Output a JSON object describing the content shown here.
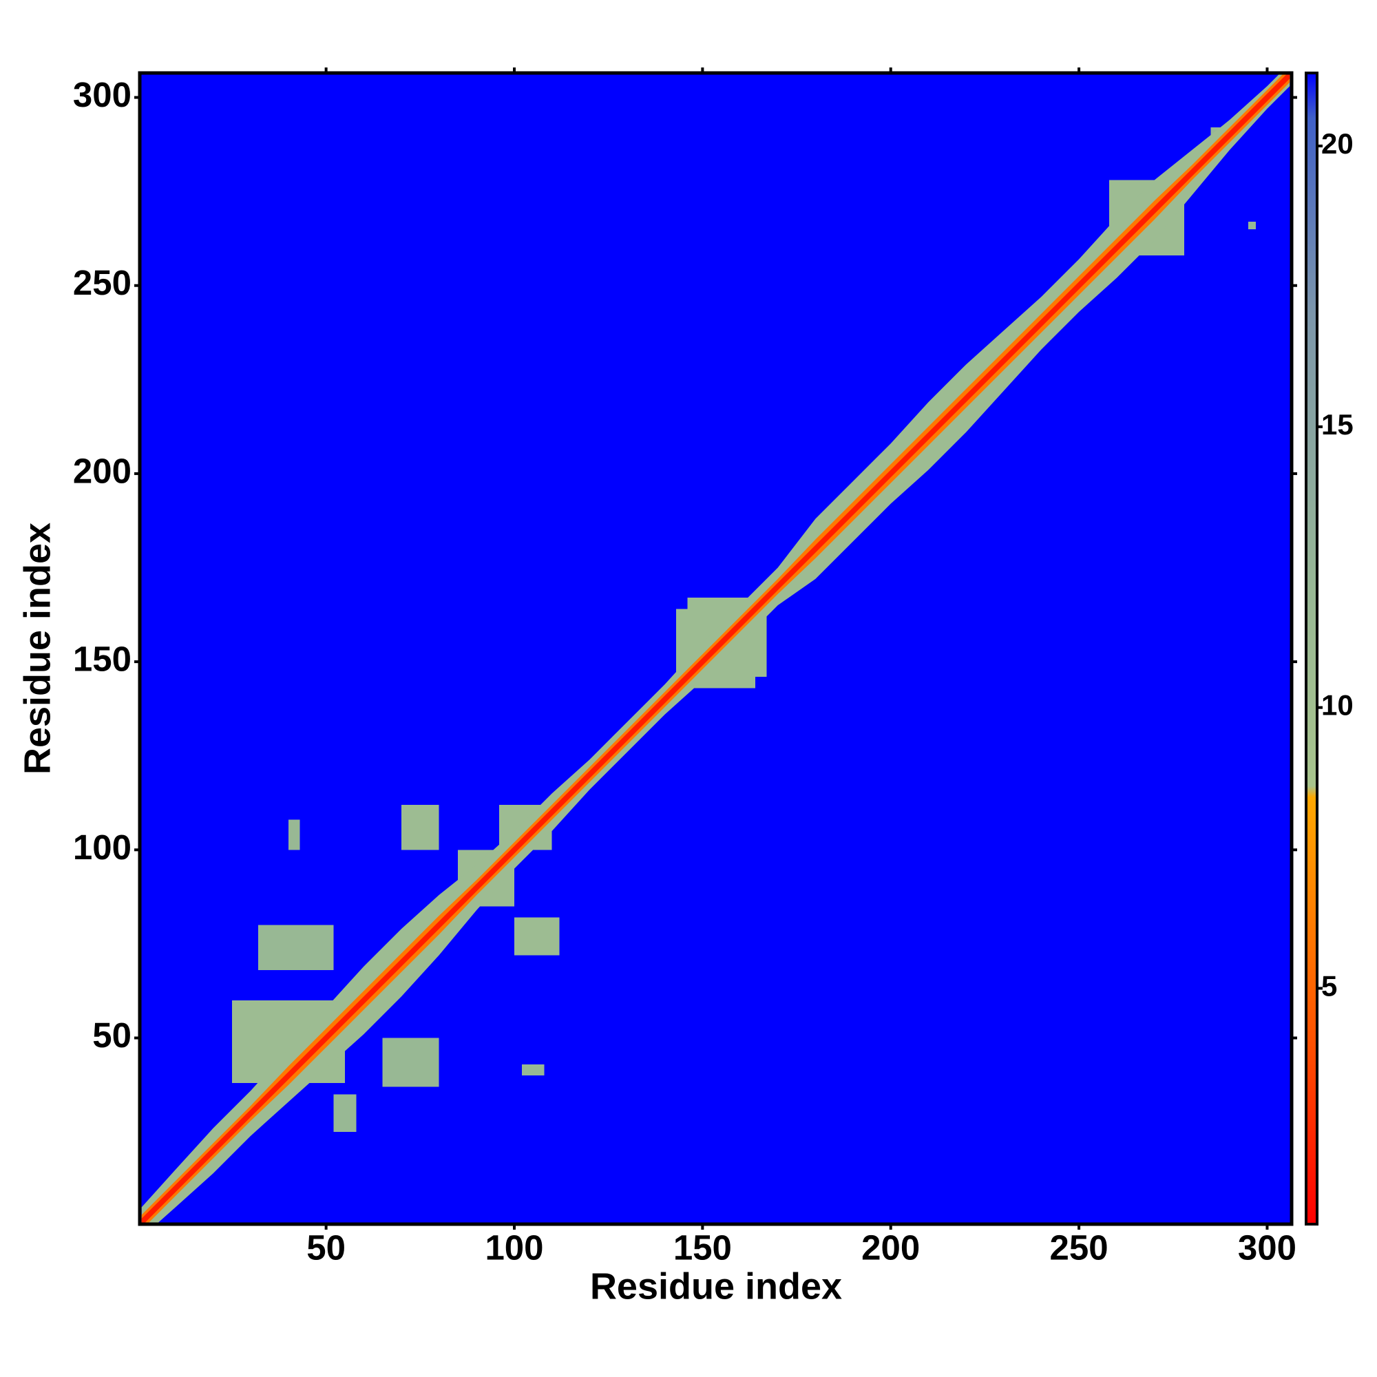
{
  "chart_data": {
    "type": "heatmap",
    "x_label": "Residue index",
    "y_label": "Residue index",
    "xlim": [
      0.5,
      306.5
    ],
    "ylim": [
      0.5,
      306.5
    ],
    "xticks": [
      50,
      100,
      150,
      200,
      250,
      300
    ],
    "yticks": [
      50,
      100,
      150,
      200,
      250,
      300
    ],
    "zlim": [
      0.8,
      21.3
    ],
    "zticks": [
      5,
      10,
      15,
      20
    ],
    "colormap": [
      {
        "value": 0.8,
        "color": "#ff0000"
      },
      {
        "value": 4,
        "color": "#ff5000"
      },
      {
        "value": 8.4,
        "color": "#ffa800"
      },
      {
        "value": 8.6,
        "color": "#a8c48c"
      },
      {
        "value": 12,
        "color": "#98b894"
      },
      {
        "value": 17,
        "color": "#7c96aa"
      },
      {
        "value": 20.5,
        "color": "#4060c8"
      },
      {
        "value": 21.3,
        "color": "#0000ff"
      }
    ],
    "background_value": 21.3,
    "x": [
      1,
      10,
      20,
      30,
      40,
      50,
      60,
      70,
      80,
      90,
      100,
      110,
      120,
      130,
      140,
      150,
      160,
      170,
      180,
      190,
      200,
      210,
      220,
      230,
      240,
      250,
      260,
      270,
      280,
      290,
      300,
      306
    ],
    "bands": [
      {
        "value": 11,
        "halfwidth": [
          4,
          5,
          6,
          6,
          7,
          8,
          9,
          9,
          8,
          6,
          5,
          5,
          4,
          4,
          4,
          5,
          5,
          5,
          8,
          8,
          8,
          9,
          9,
          8,
          7,
          7,
          8,
          8,
          6,
          4,
          3,
          3
        ]
      },
      {
        "value": 6,
        "halfwidth": [
          2,
          2,
          2,
          2,
          2.5,
          2.5,
          2.5,
          2.5,
          2.5,
          2,
          2,
          2,
          2,
          2,
          2,
          2,
          2,
          2,
          2.5,
          2.5,
          2.5,
          2.5,
          2.5,
          2.5,
          2.5,
          2.5,
          2.5,
          2.5,
          2,
          2,
          2,
          2
        ]
      },
      {
        "value": 2,
        "halfwidth": [
          1,
          1,
          1,
          1,
          1,
          1,
          1,
          1,
          1,
          1,
          1,
          1,
          1,
          1,
          1,
          1,
          1,
          1,
          1,
          1,
          1,
          1,
          1,
          1,
          1,
          1,
          1,
          1,
          1,
          1,
          1,
          1
        ]
      }
    ],
    "patches": [
      {
        "x": [
          25,
          55
        ],
        "y": [
          38,
          60
        ],
        "value": 11
      },
      {
        "x": [
          32,
          52
        ],
        "y": [
          68,
          80
        ],
        "value": 12
      },
      {
        "x": [
          65,
          80
        ],
        "y": [
          37,
          50
        ],
        "value": 12
      },
      {
        "x": [
          52,
          58
        ],
        "y": [
          25,
          35
        ],
        "value": 12
      },
      {
        "x": [
          70,
          80
        ],
        "y": [
          100,
          112
        ],
        "value": 11
      },
      {
        "x": [
          96,
          110
        ],
        "y": [
          100,
          112
        ],
        "value": 11
      },
      {
        "x": [
          100,
          112
        ],
        "y": [
          72,
          82
        ],
        "value": 11
      },
      {
        "x": [
          40,
          43
        ],
        "y": [
          100,
          108
        ],
        "value": 12
      },
      {
        "x": [
          102,
          108
        ],
        "y": [
          40,
          43
        ],
        "value": 12
      },
      {
        "x": [
          143,
          167
        ],
        "y": [
          146,
          164
        ],
        "value": 11
      },
      {
        "x": [
          146,
          164
        ],
        "y": [
          143,
          167
        ],
        "value": 11
      },
      {
        "x": [
          85,
          100
        ],
        "y": [
          85,
          100
        ],
        "value": 11
      },
      {
        "x": [
          258,
          278
        ],
        "y": [
          258,
          278
        ],
        "value": 11
      },
      {
        "x": [
          285,
          288
        ],
        "y": [
          290,
          292
        ],
        "value": 12
      },
      {
        "x": [
          295,
          297
        ],
        "y": [
          265,
          267
        ],
        "value": 12
      }
    ]
  }
}
